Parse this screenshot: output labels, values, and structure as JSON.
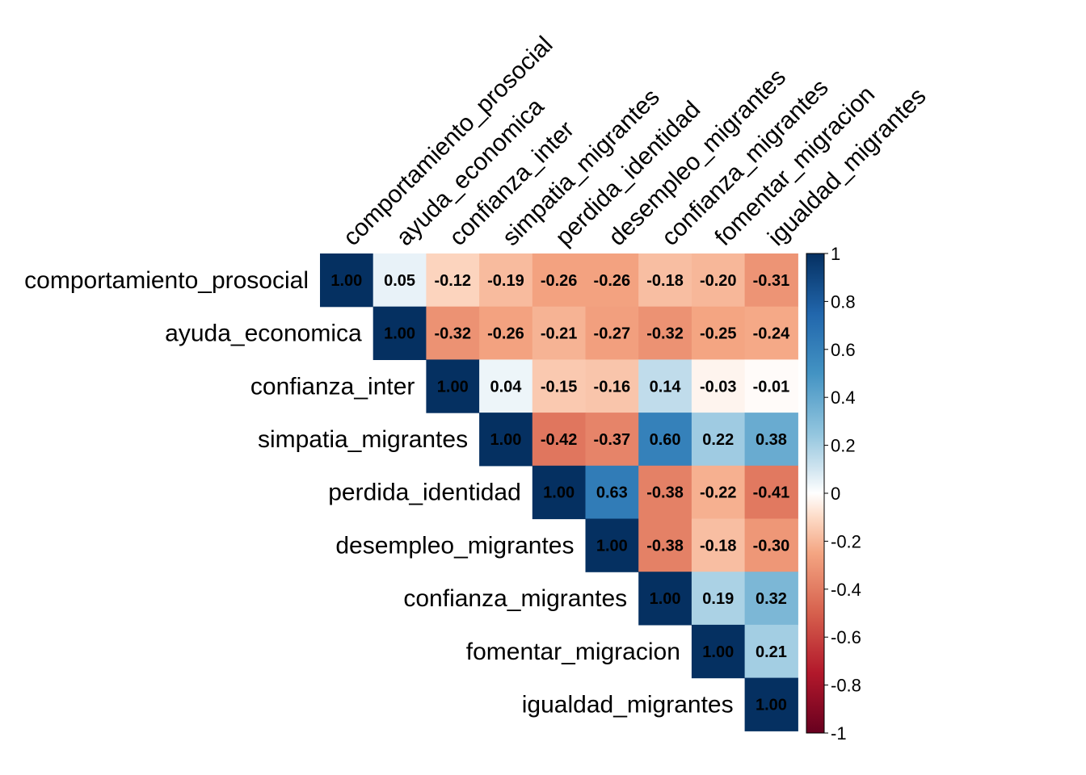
{
  "chart_data": {
    "type": "heatmap",
    "shape": "upper-triangle",
    "labels": [
      "comportamiento_prosocial",
      "ayuda_economica",
      "confianza_inter",
      "simpatia_migrantes",
      "perdida_identidad",
      "desempleo_migrantes",
      "confianza_migrantes",
      "fomentar_migracion",
      "igualdad_migrantes"
    ],
    "matrix": [
      [
        1.0,
        0.05,
        -0.12,
        -0.19,
        -0.26,
        -0.26,
        -0.18,
        -0.2,
        -0.31
      ],
      [
        null,
        1.0,
        -0.32,
        -0.26,
        -0.21,
        -0.27,
        -0.32,
        -0.25,
        -0.24
      ],
      [
        null,
        null,
        1.0,
        0.04,
        -0.15,
        -0.16,
        0.14,
        -0.03,
        -0.01
      ],
      [
        null,
        null,
        null,
        1.0,
        -0.42,
        -0.37,
        0.6,
        0.22,
        0.38
      ],
      [
        null,
        null,
        null,
        null,
        1.0,
        0.63,
        -0.38,
        -0.22,
        -0.41
      ],
      [
        null,
        null,
        null,
        null,
        null,
        1.0,
        -0.38,
        -0.18,
        -0.3
      ],
      [
        null,
        null,
        null,
        null,
        null,
        null,
        1.0,
        0.19,
        0.32
      ],
      [
        null,
        null,
        null,
        null,
        null,
        null,
        null,
        1.0,
        0.21
      ],
      [
        null,
        null,
        null,
        null,
        null,
        null,
        null,
        null,
        1.0
      ]
    ],
    "cell_labels": [
      [
        "1.00",
        "0.05",
        "-0.12",
        "-0.19",
        "-0.26",
        "-0.26",
        "-0.18",
        "-0.20",
        "-0.31"
      ],
      [
        null,
        "1.00",
        "-0.32",
        "-0.26",
        "-0.21",
        "-0.27",
        "-0.32",
        "-0.25",
        "-0.24"
      ],
      [
        null,
        null,
        "1.00",
        "0.04",
        "-0.15",
        "-0.16",
        "0.14",
        "-0.03",
        "-0.01"
      ],
      [
        null,
        null,
        null,
        "1.00",
        "-0.42",
        "-0.37",
        "0.60",
        "0.22",
        "0.38"
      ],
      [
        null,
        null,
        null,
        null,
        "1.00",
        "0.63",
        "-0.38",
        "-0.22",
        "-0.41"
      ],
      [
        null,
        null,
        null,
        null,
        null,
        "1.00",
        "-0.38",
        "-0.18",
        "-0.30"
      ],
      [
        null,
        null,
        null,
        null,
        null,
        null,
        "1.00",
        "0.19",
        "0.32"
      ],
      [
        null,
        null,
        null,
        null,
        null,
        null,
        null,
        "1.00",
        "0.21"
      ],
      [
        null,
        null,
        null,
        null,
        null,
        null,
        null,
        null,
        "1.00"
      ]
    ],
    "color_scale": {
      "range": [
        -1,
        1
      ],
      "stops": [
        {
          "value": -1.0,
          "color": "#67001f"
        },
        {
          "value": -0.75,
          "color": "#b2182b"
        },
        {
          "value": -0.5,
          "color": "#d6604d"
        },
        {
          "value": -0.25,
          "color": "#f4a582"
        },
        {
          "value": -0.1,
          "color": "#fddbc7"
        },
        {
          "value": 0.0,
          "color": "#ffffff"
        },
        {
          "value": 0.1,
          "color": "#d1e5f0"
        },
        {
          "value": 0.25,
          "color": "#92c5de"
        },
        {
          "value": 0.5,
          "color": "#4393c3"
        },
        {
          "value": 0.75,
          "color": "#2166ac"
        },
        {
          "value": 1.0,
          "color": "#053061"
        }
      ]
    },
    "colorbar_ticks": [
      {
        "value": 1,
        "label": "1"
      },
      {
        "value": 0.8,
        "label": "0.8"
      },
      {
        "value": 0.6,
        "label": "0.6"
      },
      {
        "value": 0.4,
        "label": "0.4"
      },
      {
        "value": 0.2,
        "label": "0.2"
      },
      {
        "value": 0,
        "label": "0"
      },
      {
        "value": -0.2,
        "label": "-0.2"
      },
      {
        "value": -0.4,
        "label": "-0.4"
      },
      {
        "value": -0.6,
        "label": "-0.6"
      },
      {
        "value": -0.8,
        "label": "-0.8"
      },
      {
        "value": -1,
        "label": "-1"
      }
    ],
    "legend": "right",
    "grid": false
  }
}
